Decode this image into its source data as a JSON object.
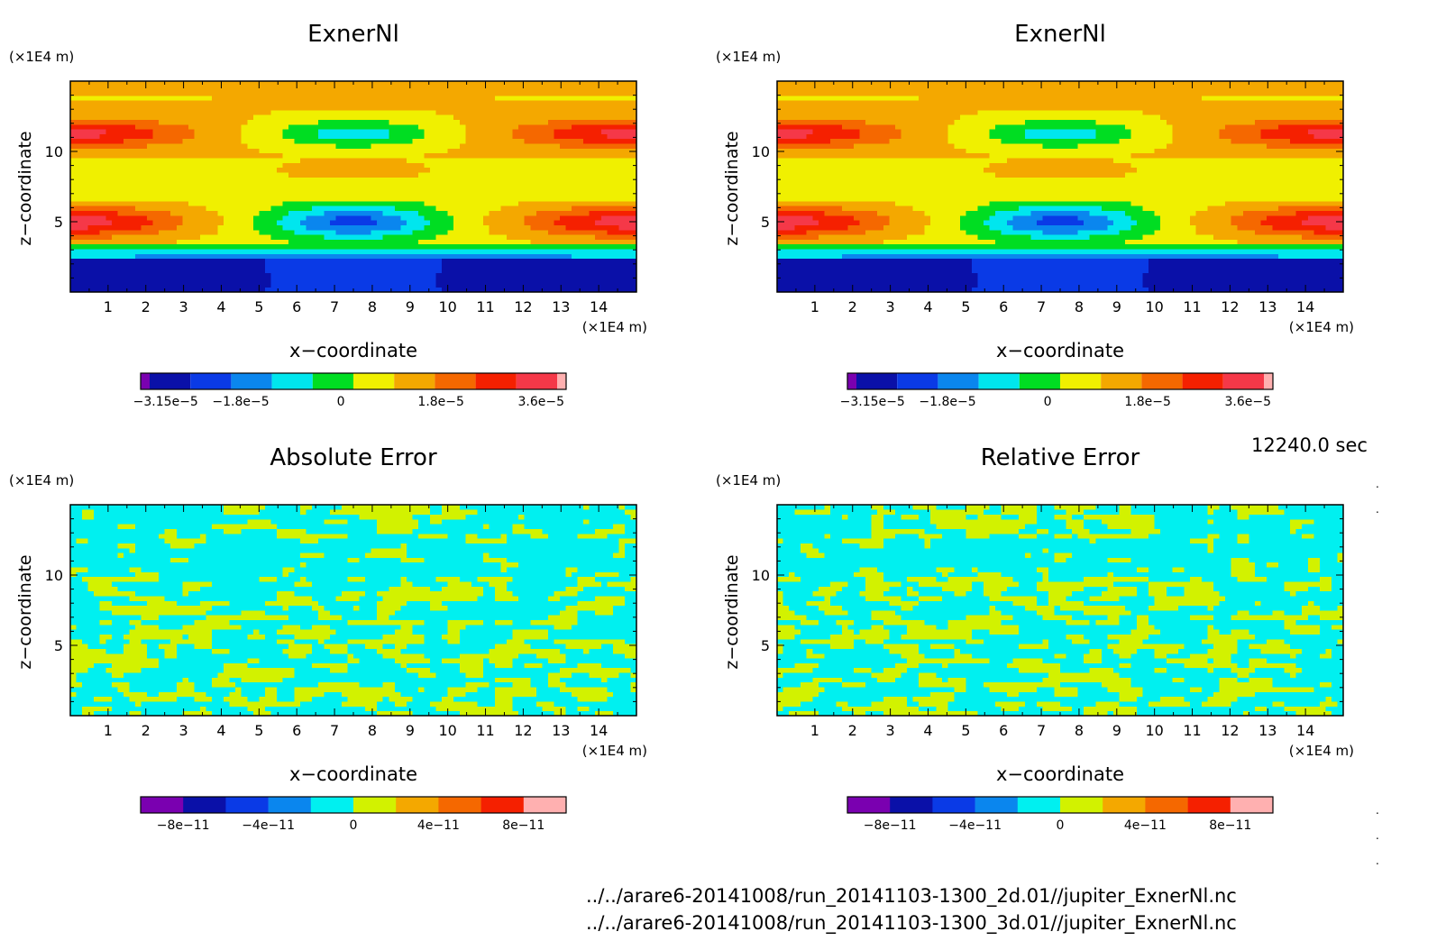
{
  "time_label": "12240.0 sec",
  "file_paths": [
    "../../arare6-20141008/run_20141103-1300_2d.01//jupiter_ExnerNl.nc",
    "../../arare6-20141008/run_20141103-1300_3d.01//jupiter_ExnerNl.nc"
  ],
  "colors": {
    "exner_levels": [
      "#7a00b0",
      "#0a10a8",
      "#0a3ae6",
      "#0a86ee",
      "#00e6ee",
      "#00dd22",
      "#f0f000",
      "#f4a800",
      "#f56800",
      "#f52000",
      "#f53848",
      "#ffb0b0"
    ],
    "error_levels": [
      "#7a00b0",
      "#0a10a8",
      "#0a3ae6",
      "#0a86ee",
      "#00f0f0",
      "#d2f200",
      "#f4a800",
      "#f56800",
      "#f52000",
      "#ffb0b0"
    ]
  },
  "chart_data": [
    {
      "type": "heatmap",
      "title": "ExnerNl",
      "xlabel": "x−coordinate",
      "ylabel": "z−coordinate",
      "x_unit": "(×1E4 m)",
      "y_unit": "(×1E4 m)",
      "xlim": [
        0,
        15
      ],
      "ylim": [
        0,
        15
      ],
      "x_ticks": [
        1,
        2,
        3,
        4,
        5,
        6,
        7,
        8,
        9,
        10,
        11,
        12,
        13,
        14
      ],
      "y_ticks": [
        5,
        10
      ],
      "colorbar_ticks": [
        {
          "label": "−3.15e−5",
          "value": -3.15e-05
        },
        {
          "label": "−1.8e−5",
          "value": -1.8e-05
        },
        {
          "label": "0",
          "value": 0
        },
        {
          "label": "1.8e−5",
          "value": 1.8e-05
        },
        {
          "label": "3.6e−5",
          "value": 3.6e-05
        }
      ]
    },
    {
      "type": "heatmap",
      "title": "ExnerNl",
      "xlabel": "x−coordinate",
      "ylabel": "z−coordinate",
      "x_unit": "(×1E4 m)",
      "y_unit": "(×1E4 m)",
      "xlim": [
        0,
        15
      ],
      "ylim": [
        0,
        15
      ],
      "x_ticks": [
        1,
        2,
        3,
        4,
        5,
        6,
        7,
        8,
        9,
        10,
        11,
        12,
        13,
        14
      ],
      "y_ticks": [
        5,
        10
      ],
      "colorbar_ticks": [
        {
          "label": "−3.15e−5",
          "value": -3.15e-05
        },
        {
          "label": "−1.8e−5",
          "value": -1.8e-05
        },
        {
          "label": "0",
          "value": 0
        },
        {
          "label": "1.8e−5",
          "value": 1.8e-05
        },
        {
          "label": "3.6e−5",
          "value": 3.6e-05
        }
      ]
    },
    {
      "type": "heatmap",
      "title": "Absolute Error",
      "xlabel": "x−coordinate",
      "ylabel": "z−coordinate",
      "x_unit": "(×1E4 m)",
      "y_unit": "(×1E4 m)",
      "xlim": [
        0,
        15
      ],
      "ylim": [
        0,
        15
      ],
      "x_ticks": [
        1,
        2,
        3,
        4,
        5,
        6,
        7,
        8,
        9,
        10,
        11,
        12,
        13,
        14
      ],
      "y_ticks": [
        5,
        10
      ],
      "colorbar_ticks": [
        {
          "label": "−8e−11",
          "value": -8e-11
        },
        {
          "label": "−4e−11",
          "value": -4e-11
        },
        {
          "label": "0",
          "value": 0
        },
        {
          "label": "4e−11",
          "value": 4e-11
        },
        {
          "label": "8e−11",
          "value": 8e-11
        }
      ]
    },
    {
      "type": "heatmap",
      "title": "Relative Error",
      "xlabel": "x−coordinate",
      "ylabel": "z−coordinate",
      "x_unit": "(×1E4 m)",
      "y_unit": "(×1E4 m)",
      "xlim": [
        0,
        15
      ],
      "ylim": [
        0,
        15
      ],
      "x_ticks": [
        1,
        2,
        3,
        4,
        5,
        6,
        7,
        8,
        9,
        10,
        11,
        12,
        13,
        14
      ],
      "y_ticks": [
        5,
        10
      ],
      "colorbar_ticks": [
        {
          "label": "−8e−11",
          "value": -8e-11
        },
        {
          "label": "−4e−11",
          "value": -4e-11
        },
        {
          "label": "0",
          "value": 0
        },
        {
          "label": "4e−11",
          "value": 4e-11
        },
        {
          "label": "8e−11",
          "value": 8e-11
        }
      ]
    }
  ]
}
